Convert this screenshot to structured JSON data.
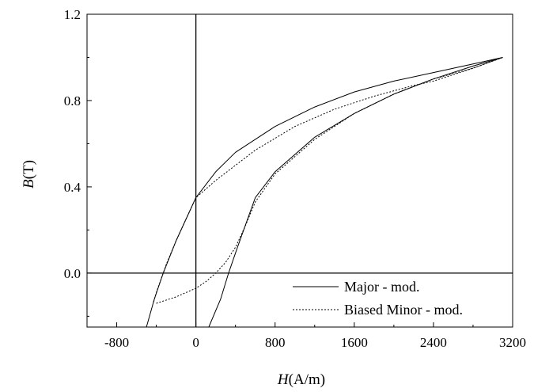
{
  "chart_data": {
    "type": "line",
    "title": "",
    "xlabel_var": "H",
    "xlabel_unit": "(A/m)",
    "ylabel_var": "B",
    "ylabel_unit": "(T)",
    "xlim": [
      -1100,
      3200
    ],
    "ylim": [
      -0.25,
      1.2
    ],
    "xticks": [
      -800,
      0,
      800,
      1600,
      2400,
      3200
    ],
    "xtick_labels": [
      "-800",
      "0",
      "800",
      "1600",
      "2400",
      "3200"
    ],
    "yticks": [
      0.0,
      0.4,
      0.8,
      1.2
    ],
    "ytick_labels": [
      "0.0",
      "0.4",
      "0.8",
      "1.2"
    ],
    "zero_lines": true,
    "grid": false,
    "legend_position": "bottom-right",
    "series": [
      {
        "name": "Major - mod.",
        "style": "solid",
        "color": "#000000",
        "segments": [
          [
            [
              -500,
              -0.25
            ],
            [
              -420,
              -0.12
            ],
            [
              -330,
              0.0
            ],
            [
              -200,
              0.15
            ],
            [
              0,
              0.35
            ],
            [
              200,
              0.47
            ],
            [
              400,
              0.56
            ],
            [
              800,
              0.68
            ],
            [
              1200,
              0.77
            ],
            [
              1600,
              0.84
            ],
            [
              2000,
              0.89
            ],
            [
              2400,
              0.93
            ],
            [
              2800,
              0.97
            ],
            [
              3100,
              1.0
            ]
          ],
          [
            [
              3100,
              1.0
            ],
            [
              2800,
              0.96
            ],
            [
              2400,
              0.9
            ],
            [
              2000,
              0.83
            ],
            [
              1600,
              0.74
            ],
            [
              1200,
              0.63
            ],
            [
              800,
              0.47
            ],
            [
              600,
              0.35
            ],
            [
              420,
              0.12
            ],
            [
              330,
              0.0
            ],
            [
              250,
              -0.12
            ],
            [
              130,
              -0.25
            ]
          ]
        ]
      },
      {
        "name": "Biased Minor - mod.",
        "style": "dotted",
        "color": "#000000",
        "segments": [
          [
            [
              -400,
              -0.14
            ],
            [
              -200,
              -0.11
            ],
            [
              0,
              -0.07
            ],
            [
              100,
              -0.04
            ],
            [
              200,
              0.0
            ],
            [
              300,
              0.05
            ],
            [
              400,
              0.12
            ],
            [
              500,
              0.22
            ],
            [
              600,
              0.33
            ],
            [
              800,
              0.46
            ],
            [
              1200,
              0.62
            ],
            [
              1600,
              0.74
            ],
            [
              2000,
              0.83
            ],
            [
              2400,
              0.9
            ],
            [
              2800,
              0.95
            ],
            [
              3100,
              1.0
            ]
          ],
          [
            [
              3100,
              1.0
            ],
            [
              2800,
              0.95
            ],
            [
              2400,
              0.89
            ],
            [
              2200,
              0.87
            ],
            [
              1800,
              0.82
            ],
            [
              1400,
              0.76
            ],
            [
              1000,
              0.68
            ],
            [
              600,
              0.57
            ],
            [
              400,
              0.5
            ],
            [
              200,
              0.43
            ],
            [
              0,
              0.35
            ],
            [
              -200,
              0.15
            ],
            [
              -300,
              0.04
            ],
            [
              -330,
              0.0
            ],
            [
              -400,
              -0.09
            ],
            [
              -430,
              -0.14
            ]
          ]
        ]
      }
    ]
  }
}
